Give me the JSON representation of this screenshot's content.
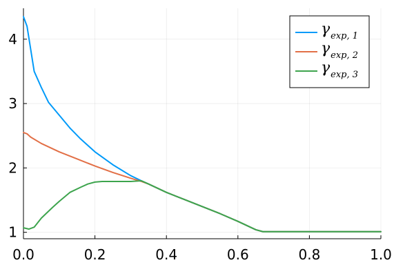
{
  "chart_data": {
    "type": "line",
    "title": "",
    "xlabel": "",
    "ylabel": "",
    "xlim": [
      0,
      1
    ],
    "ylim": [
      0.9,
      4.48
    ],
    "grid": true,
    "legend_position": "top-right",
    "x_ticks": [
      {
        "value": 0.0,
        "label": "0.0"
      },
      {
        "value": 0.2,
        "label": "0.2"
      },
      {
        "value": 0.4,
        "label": "0.4"
      },
      {
        "value": 0.6,
        "label": "0.6"
      },
      {
        "value": 0.8,
        "label": "0.8"
      },
      {
        "value": 1.0,
        "label": "1.0"
      }
    ],
    "y_ticks": [
      {
        "value": 1,
        "label": "1"
      },
      {
        "value": 2,
        "label": "2"
      },
      {
        "value": 3,
        "label": "3"
      },
      {
        "value": 4,
        "label": "4"
      }
    ],
    "series": [
      {
        "name": "γ",
        "subscript": "exp, 1",
        "color": "#009af9",
        "x": [
          0.0,
          0.01,
          0.02,
          0.03,
          0.05,
          0.07,
          0.1,
          0.13,
          0.16,
          0.2,
          0.25,
          0.3,
          0.33,
          0.35,
          0.4,
          0.45,
          0.5,
          0.55,
          0.6,
          0.65,
          0.67,
          0.7,
          0.8,
          0.9,
          1.0
        ],
        "y": [
          4.35,
          4.2,
          3.85,
          3.5,
          3.25,
          3.02,
          2.82,
          2.62,
          2.45,
          2.25,
          2.05,
          1.88,
          1.8,
          1.75,
          1.62,
          1.51,
          1.4,
          1.29,
          1.17,
          1.04,
          1.01,
          1.01,
          1.01,
          1.01,
          1.01
        ]
      },
      {
        "name": "γ",
        "subscript": "exp, 2",
        "color": "#e26f46",
        "x": [
          0.0,
          0.01,
          0.02,
          0.05,
          0.1,
          0.15,
          0.2,
          0.25,
          0.3,
          0.33,
          0.35,
          0.4,
          0.45,
          0.5,
          0.55,
          0.6,
          0.65,
          0.67,
          0.7,
          0.8,
          0.9,
          1.0
        ],
        "y": [
          2.55,
          2.53,
          2.48,
          2.38,
          2.25,
          2.14,
          2.03,
          1.93,
          1.84,
          1.79,
          1.75,
          1.62,
          1.51,
          1.4,
          1.29,
          1.17,
          1.04,
          1.01,
          1.01,
          1.01,
          1.01,
          1.01
        ]
      },
      {
        "name": "γ",
        "subscript": "exp, 3",
        "color": "#3da44d",
        "x": [
          0.0,
          0.015,
          0.03,
          0.05,
          0.08,
          0.1,
          0.13,
          0.16,
          0.18,
          0.2,
          0.22,
          0.25,
          0.3,
          0.33,
          0.35,
          0.4,
          0.45,
          0.5,
          0.55,
          0.6,
          0.65,
          0.67,
          0.7,
          0.8,
          0.9,
          1.0
        ],
        "y": [
          1.07,
          1.05,
          1.08,
          1.22,
          1.38,
          1.48,
          1.62,
          1.7,
          1.75,
          1.78,
          1.79,
          1.79,
          1.79,
          1.8,
          1.75,
          1.62,
          1.51,
          1.4,
          1.29,
          1.17,
          1.04,
          1.01,
          1.01,
          1.01,
          1.01,
          1.01
        ]
      }
    ]
  }
}
